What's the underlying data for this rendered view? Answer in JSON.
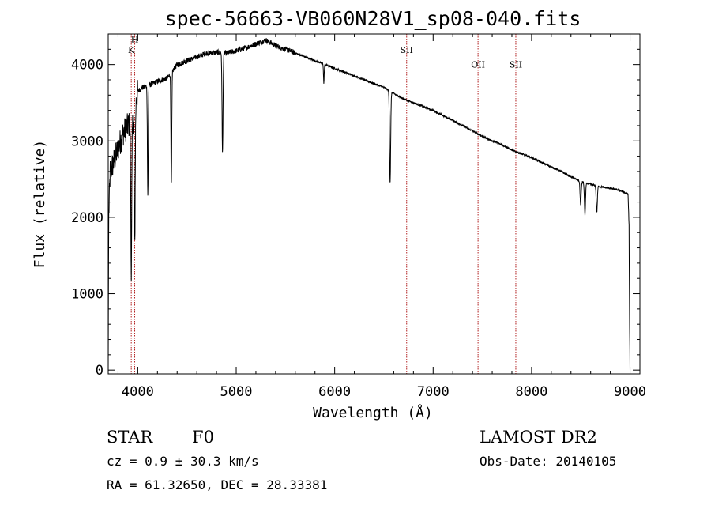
{
  "chart_data": {
    "type": "line",
    "title": "spec-56663-VB060N28V1_sp08-040.fits",
    "xlabel": "Wavelength (Å)",
    "ylabel": "Flux (relative)",
    "xlim": [
      3700,
      9100
    ],
    "ylim": [
      -50,
      4400
    ],
    "xticks": [
      4000,
      5000,
      6000,
      7000,
      8000,
      9000
    ],
    "yticks": [
      0,
      1000,
      2000,
      3000,
      4000
    ],
    "continuum": [
      [
        3700,
        0
      ],
      [
        3705,
        2000
      ],
      [
        3720,
        2600
      ],
      [
        3750,
        2700
      ],
      [
        3800,
        2900
      ],
      [
        3850,
        3100
      ],
      [
        3900,
        3200
      ],
      [
        3950,
        3250
      ],
      [
        4000,
        3650
      ],
      [
        4050,
        3700
      ],
      [
        4100,
        3720
      ],
      [
        4200,
        3780
      ],
      [
        4300,
        3820
      ],
      [
        4400,
        4000
      ],
      [
        4500,
        4050
      ],
      [
        4600,
        4100
      ],
      [
        4700,
        4150
      ],
      [
        4800,
        4160
      ],
      [
        4900,
        4150
      ],
      [
        5000,
        4180
      ],
      [
        5100,
        4220
      ],
      [
        5200,
        4270
      ],
      [
        5300,
        4320
      ],
      [
        5400,
        4250
      ],
      [
        5500,
        4200
      ],
      [
        5600,
        4150
      ],
      [
        5700,
        4100
      ],
      [
        5800,
        4050
      ],
      [
        5900,
        4000
      ],
      [
        6000,
        3950
      ],
      [
        6100,
        3900
      ],
      [
        6200,
        3850
      ],
      [
        6300,
        3800
      ],
      [
        6400,
        3750
      ],
      [
        6500,
        3700
      ],
      [
        6600,
        3620
      ],
      [
        6700,
        3550
      ],
      [
        6800,
        3500
      ],
      [
        6900,
        3450
      ],
      [
        7000,
        3400
      ],
      [
        7100,
        3330
      ],
      [
        7200,
        3270
      ],
      [
        7300,
        3200
      ],
      [
        7400,
        3130
      ],
      [
        7500,
        3060
      ],
      [
        7600,
        3000
      ],
      [
        7700,
        2950
      ],
      [
        7800,
        2880
      ],
      [
        7900,
        2830
      ],
      [
        8000,
        2780
      ],
      [
        8100,
        2720
      ],
      [
        8200,
        2660
      ],
      [
        8300,
        2600
      ],
      [
        8400,
        2530
      ],
      [
        8500,
        2470
      ],
      [
        8600,
        2430
      ],
      [
        8700,
        2400
      ],
      [
        8800,
        2380
      ],
      [
        8900,
        2350
      ],
      [
        8980,
        2300
      ],
      [
        8990,
        1900
      ],
      [
        8995,
        700
      ],
      [
        9000,
        0
      ]
    ],
    "absorption_lines": [
      {
        "x": 3934,
        "depth": 1900,
        "width": 7
      },
      {
        "x": 3969,
        "depth": 1800,
        "width": 7
      },
      {
        "x": 4102,
        "depth": 1450,
        "width": 6
      },
      {
        "x": 4341,
        "depth": 1500,
        "width": 6
      },
      {
        "x": 4861,
        "depth": 1300,
        "width": 7
      },
      {
        "x": 5890,
        "depth": 250,
        "width": 5
      },
      {
        "x": 6563,
        "depth": 1200,
        "width": 8
      },
      {
        "x": 8498,
        "depth": 300,
        "width": 8
      },
      {
        "x": 8542,
        "depth": 420,
        "width": 8
      },
      {
        "x": 8662,
        "depth": 350,
        "width": 8
      }
    ],
    "reference_lines": [
      {
        "x": 3934,
        "label": "K",
        "label_y": 4150
      },
      {
        "x": 3969,
        "label": "H",
        "label_y": 4290
      },
      {
        "x": 6731,
        "label": "SII",
        "label_y": 4150
      },
      {
        "x": 7456,
        "label": "OII",
        "label_y": 3960
      },
      {
        "x": 7840,
        "label": "SII",
        "label_y": 3960
      }
    ],
    "reference_line_color": "#b22222",
    "line_color": "#000000"
  },
  "info": {
    "object_class": "STAR",
    "subclass": "F0",
    "survey": "LAMOST DR2",
    "redshift": "cz = 0.9 ± 30.3 km/s",
    "obs_date": "Obs-Date: 20140105",
    "coords": "RA =  61.32650, DEC =  28.33381"
  }
}
